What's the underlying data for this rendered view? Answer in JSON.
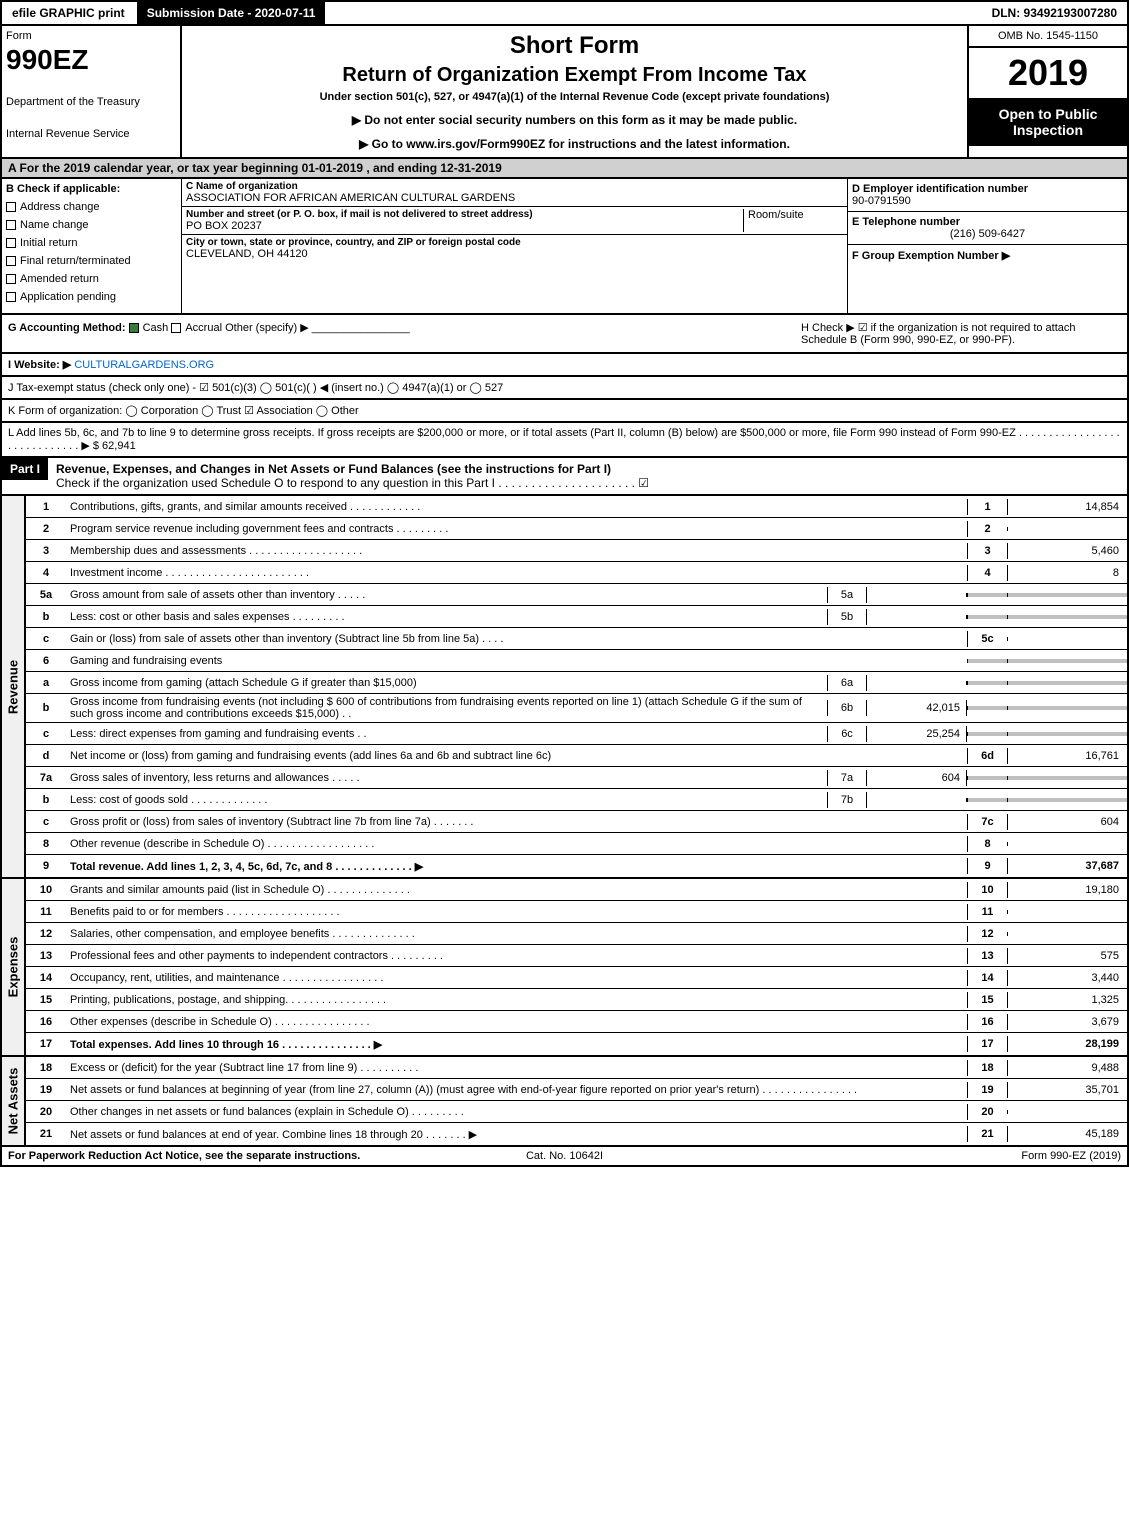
{
  "top_bar": {
    "efile": "efile GRAPHIC print",
    "submission": "Submission Date - 2020-07-11",
    "dln": "DLN: 93492193007280"
  },
  "header": {
    "form_word": "Form",
    "form_code": "990EZ",
    "dept1": "Department of the Treasury",
    "dept2": "Internal Revenue Service",
    "short_form": "Short Form",
    "return_of": "Return of Organization Exempt From Income Tax",
    "under": "Under section 501(c), 527, or 4947(a)(1) of the Internal Revenue Code (except private foundations)",
    "warn": "▶ Do not enter social security numbers on this form as it may be made public.",
    "goto": "▶ Go to www.irs.gov/Form990EZ for instructions and the latest information.",
    "omb": "OMB No. 1545-1150",
    "year": "2019",
    "open": "Open to Public Inspection"
  },
  "section_a": "A  For the 2019 calendar year, or tax year beginning 01-01-2019 , and ending 12-31-2019",
  "box_b": {
    "title": "B  Check if applicable:",
    "opts": [
      "Address change",
      "Name change",
      "Initial return",
      "Final return/terminated",
      "Amended return",
      "Application pending"
    ]
  },
  "box_c": {
    "label_c": "C Name of organization",
    "org": "ASSOCIATION FOR AFRICAN AMERICAN CULTURAL GARDENS",
    "label_addr": "Number and street (or P. O. box, if mail is not delivered to street address)",
    "room": "Room/suite",
    "addr": "PO BOX 20237",
    "label_city": "City or town, state or province, country, and ZIP or foreign postal code",
    "city": "CLEVELAND, OH  44120"
  },
  "box_de": {
    "d_label": "D Employer identification number",
    "d_val": "90-0791590",
    "e_label": "E Telephone number",
    "e_val": "(216) 509-6427",
    "f_label": "F Group Exemption Number  ▶"
  },
  "row_g": {
    "label": "G Accounting Method:",
    "cash": "Cash",
    "accrual": "Accrual",
    "other": "Other (specify) ▶"
  },
  "row_h": "H  Check ▶ ☑ if the organization is not required to attach Schedule B (Form 990, 990-EZ, or 990-PF).",
  "row_i": {
    "label": "I Website: ▶",
    "site": "CULTURALGARDENS.ORG"
  },
  "row_j": "J Tax-exempt status (check only one) - ☑ 501(c)(3)  ◯ 501(c)(  ) ◀ (insert no.)  ◯ 4947(a)(1) or  ◯ 527",
  "row_k": "K Form of organization:   ◯ Corporation   ◯ Trust   ☑ Association   ◯ Other",
  "row_l": "L Add lines 5b, 6c, and 7b to line 9 to determine gross receipts. If gross receipts are $200,000 or more, or if total assets (Part II, column (B) below) are $500,000 or more, file Form 990 instead of Form 990-EZ . . . . . . . . . . . . . . . . . . . . . . . . . . . . . ▶ $ 62,941",
  "part1": {
    "label": "Part I",
    "title": "Revenue, Expenses, and Changes in Net Assets or Fund Balances (see the instructions for Part I)",
    "check": "Check if the organization used Schedule O to respond to any question in this Part I . . . . . . . . . . . . . . . . . . . . .  ☑"
  },
  "revenue": {
    "side": "Revenue",
    "lines": [
      {
        "n": "1",
        "d": "Contributions, gifts, grants, and similar amounts received . . . . . . . . . . . .",
        "box": "1",
        "v": "14,854"
      },
      {
        "n": "2",
        "d": "Program service revenue including government fees and contracts . . . . . . . . .",
        "box": "2",
        "v": ""
      },
      {
        "n": "3",
        "d": "Membership dues and assessments . . . . . . . . . . . . . . . . . . .",
        "box": "3",
        "v": "5,460"
      },
      {
        "n": "4",
        "d": "Investment income . . . . . . . . . . . . . . . . . . . . . . . .",
        "box": "4",
        "v": "8"
      },
      {
        "n": "5a",
        "d": "Gross amount from sale of assets other than inventory . . . . .",
        "sub": "5a",
        "sv": "",
        "shaded": true
      },
      {
        "n": "b",
        "d": "Less: cost or other basis and sales expenses . . . . . . . . .",
        "sub": "5b",
        "sv": "",
        "shaded": true
      },
      {
        "n": "c",
        "d": "Gain or (loss) from sale of assets other than inventory (Subtract line 5b from line 5a) . . . .",
        "box": "5c",
        "v": ""
      },
      {
        "n": "6",
        "d": "Gaming and fundraising events",
        "shaded": true
      },
      {
        "n": "a",
        "d": "Gross income from gaming (attach Schedule G if greater than $15,000)",
        "sub": "6a",
        "sv": "",
        "shaded": true
      },
      {
        "n": "b",
        "d": "Gross income from fundraising events (not including $  600          of contributions from fundraising events reported on line 1) (attach Schedule G if the sum of such gross income and contributions exceeds $15,000) . .",
        "sub": "6b",
        "sv": "42,015",
        "shaded": true
      },
      {
        "n": "c",
        "d": "Less: direct expenses from gaming and fundraising events     . .",
        "sub": "6c",
        "sv": "25,254",
        "shaded": true
      },
      {
        "n": "d",
        "d": "Net income or (loss) from gaming and fundraising events (add lines 6a and 6b and subtract line 6c)",
        "box": "6d",
        "v": "16,761"
      },
      {
        "n": "7a",
        "d": "Gross sales of inventory, less returns and allowances . . . . .",
        "sub": "7a",
        "sv": "604",
        "shaded": true
      },
      {
        "n": "b",
        "d": "Less: cost of goods sold       . . . . . . . . . . . . .",
        "sub": "7b",
        "sv": "",
        "shaded": true
      },
      {
        "n": "c",
        "d": "Gross profit or (loss) from sales of inventory (Subtract line 7b from line 7a) . . . . . . .",
        "box": "7c",
        "v": "604"
      },
      {
        "n": "8",
        "d": "Other revenue (describe in Schedule O) . . . . . . . . . . . . . . . . . .",
        "box": "8",
        "v": ""
      },
      {
        "n": "9",
        "d": "Total revenue. Add lines 1, 2, 3, 4, 5c, 6d, 7c, and 8  . . . . . . . . . . . . . ▶",
        "box": "9",
        "v": "37,687",
        "total": true
      }
    ]
  },
  "expenses": {
    "side": "Expenses",
    "lines": [
      {
        "n": "10",
        "d": "Grants and similar amounts paid (list in Schedule O) . . . . . . . . . . . . . .",
        "box": "10",
        "v": "19,180"
      },
      {
        "n": "11",
        "d": "Benefits paid to or for members   . . . . . . . . . . . . . . . . . . .",
        "box": "11",
        "v": ""
      },
      {
        "n": "12",
        "d": "Salaries, other compensation, and employee benefits . . . . . . . . . . . . . .",
        "box": "12",
        "v": ""
      },
      {
        "n": "13",
        "d": "Professional fees and other payments to independent contractors . . . . . . . . .",
        "box": "13",
        "v": "575"
      },
      {
        "n": "14",
        "d": "Occupancy, rent, utilities, and maintenance . . . . . . . . . . . . . . . . .",
        "box": "14",
        "v": "3,440"
      },
      {
        "n": "15",
        "d": "Printing, publications, postage, and shipping. . . . . . . . . . . . . . . . .",
        "box": "15",
        "v": "1,325"
      },
      {
        "n": "16",
        "d": "Other expenses (describe in Schedule O)    . . . . . . . . . . . . . . . .",
        "box": "16",
        "v": "3,679"
      },
      {
        "n": "17",
        "d": "Total expenses. Add lines 10 through 16    . . . . . . . . . . . . . . . ▶",
        "box": "17",
        "v": "28,199",
        "total": true
      }
    ]
  },
  "netassets": {
    "side": "Net Assets",
    "lines": [
      {
        "n": "18",
        "d": "Excess or (deficit) for the year (Subtract line 17 from line 9)      . . . . . . . . . .",
        "box": "18",
        "v": "9,488"
      },
      {
        "n": "19",
        "d": "Net assets or fund balances at beginning of year (from line 27, column (A)) (must agree with end-of-year figure reported on prior year's return) . . . . . . . . . . . . . . . .",
        "box": "19",
        "v": "35,701"
      },
      {
        "n": "20",
        "d": "Other changes in net assets or fund balances (explain in Schedule O) . . . . . . . . .",
        "box": "20",
        "v": ""
      },
      {
        "n": "21",
        "d": "Net assets or fund balances at end of year. Combine lines 18 through 20 . . . . . . . ▶",
        "box": "21",
        "v": "45,189"
      }
    ]
  },
  "footer": {
    "left": "For Paperwork Reduction Act Notice, see the separate instructions.",
    "mid": "Cat. No. 10642I",
    "right": "Form 990-EZ (2019)"
  }
}
